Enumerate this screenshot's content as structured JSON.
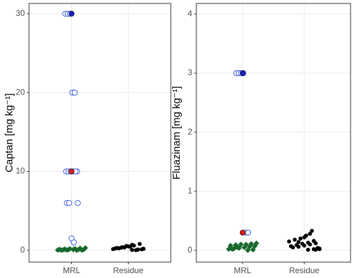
{
  "chart_data": [
    {
      "type": "strip",
      "ylabel": "Captan [mg kg⁻¹]",
      "categories": [
        "MRL",
        "Residue"
      ],
      "ylim": [
        -1.5,
        31.3
      ],
      "yticks": [
        0,
        10,
        20,
        30
      ],
      "grid": true,
      "series": [
        {
          "category": "MRL",
          "marker": "open-circle",
          "color": "#3b5bdb",
          "values": [
            30,
            30,
            30,
            20,
            20,
            10,
            10,
            10,
            10,
            10,
            10,
            6,
            6,
            6,
            1.5,
            1.0
          ]
        },
        {
          "category": "MRL",
          "marker": "diamond",
          "color": "#17692b",
          "values": [
            0.01,
            0.02,
            0.03,
            0.05,
            0.05,
            0.08,
            0.1,
            0.1,
            0.12,
            0.15,
            0.2,
            0.2,
            0.25,
            0.3,
            0.02,
            0.05
          ]
        },
        {
          "category": "MRL",
          "marker": "circle",
          "color": "#1c1fc9",
          "values": [
            30
          ]
        },
        {
          "category": "MRL",
          "marker": "circle",
          "color": "#e31a1c",
          "values": [
            10
          ]
        },
        {
          "category": "Residue",
          "marker": "circle",
          "color": "#000000",
          "values": [
            0.05,
            0.1,
            0.2,
            0.3,
            0.4,
            0.5,
            0.6,
            0.8,
            0.15,
            0.25,
            0.35,
            0.45,
            0.02,
            0.12,
            0.22,
            0.32,
            0.55,
            0.7,
            0.08,
            0.18
          ]
        }
      ]
    },
    {
      "type": "strip",
      "ylabel": "Fluazinam [mg kg⁻¹]",
      "categories": [
        "MRL",
        "Residue"
      ],
      "ylim": [
        -0.2,
        4.18
      ],
      "yticks": [
        0,
        1,
        2,
        3,
        4
      ],
      "grid": true,
      "series": [
        {
          "category": "MRL",
          "marker": "open-circle",
          "color": "#3b5bdb",
          "values": [
            3,
            3,
            3,
            3,
            0.3,
            0.3
          ]
        },
        {
          "category": "MRL",
          "marker": "diamond",
          "color": "#17692b",
          "values": [
            0.0,
            0.01,
            0.02,
            0.03,
            0.04,
            0.05,
            0.06,
            0.07,
            0.08,
            0.09,
            0.1,
            0.1,
            0.11,
            0.12,
            0.02,
            0.05
          ]
        },
        {
          "category": "MRL",
          "marker": "circle",
          "color": "#1c1fc9",
          "values": [
            3
          ]
        },
        {
          "category": "MRL",
          "marker": "circle",
          "color": "#e31a1c",
          "values": [
            0.3
          ]
        },
        {
          "category": "Residue",
          "marker": "circle",
          "color": "#000000",
          "values": [
            0.01,
            0.02,
            0.03,
            0.05,
            0.06,
            0.08,
            0.1,
            0.12,
            0.15,
            0.18,
            0.2,
            0.25,
            0.33,
            0.04,
            0.07,
            0.09,
            0.11,
            0.13,
            0.16,
            0.02,
            0.05,
            0.14,
            0.22,
            0.28,
            0.01
          ]
        }
      ]
    }
  ]
}
